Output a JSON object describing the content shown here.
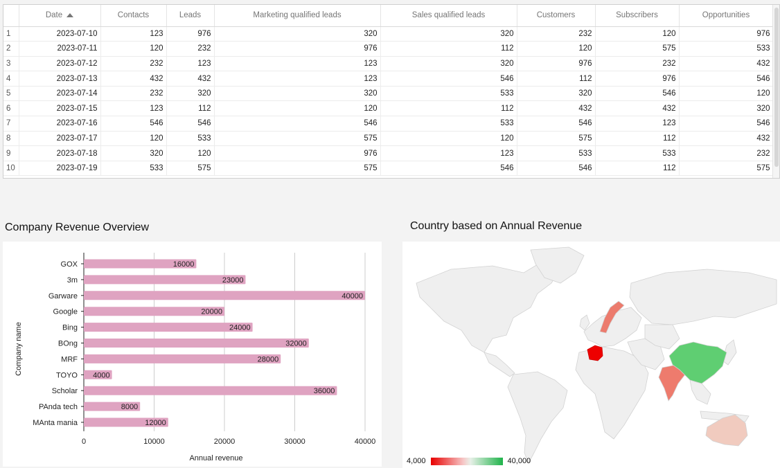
{
  "table": {
    "columns": [
      "",
      "Date",
      "Contacts",
      "Leads",
      "Marketing qualified leads",
      "Sales qualified leads",
      "Customers",
      "Subscribers",
      "Opportunities"
    ],
    "rows": [
      [
        "1",
        "2023-07-10",
        "123",
        "976",
        "320",
        "320",
        "232",
        "120",
        "976"
      ],
      [
        "2",
        "2023-07-11",
        "120",
        "232",
        "976",
        "112",
        "120",
        "575",
        "533"
      ],
      [
        "3",
        "2023-07-12",
        "232",
        "123",
        "123",
        "320",
        "976",
        "232",
        "432"
      ],
      [
        "4",
        "2023-07-13",
        "432",
        "432",
        "123",
        "546",
        "112",
        "976",
        "546"
      ],
      [
        "5",
        "2023-07-14",
        "232",
        "320",
        "320",
        "533",
        "320",
        "546",
        "120"
      ],
      [
        "6",
        "2023-07-15",
        "123",
        "112",
        "120",
        "112",
        "432",
        "432",
        "320"
      ],
      [
        "7",
        "2023-07-16",
        "546",
        "546",
        "546",
        "533",
        "546",
        "123",
        "546"
      ],
      [
        "8",
        "2023-07-17",
        "120",
        "533",
        "575",
        "120",
        "575",
        "112",
        "432"
      ],
      [
        "9",
        "2023-07-18",
        "320",
        "120",
        "976",
        "123",
        "533",
        "533",
        "232"
      ],
      [
        "10",
        "2023-07-19",
        "533",
        "575",
        "575",
        "546",
        "546",
        "112",
        "575"
      ]
    ],
    "sort": {
      "column": "Date",
      "direction": "ascending"
    }
  },
  "bar_section": {
    "title": "Company Revenue Overview"
  },
  "map_section": {
    "title": "Country based on Annual Revenue"
  },
  "chart_data": [
    {
      "type": "bar",
      "orientation": "horizontal",
      "title": "",
      "xlabel": "Annual revenue",
      "ylabel": "Company name",
      "categories": [
        "GOX",
        "3m",
        "Garware",
        "Google",
        "Bing",
        "BOng",
        "MRF",
        "TOYO",
        "Scholar",
        "PAnda tech",
        "MAnta mania"
      ],
      "values": [
        16000,
        23000,
        40000,
        20000,
        24000,
        32000,
        28000,
        4000,
        36000,
        8000,
        12000
      ],
      "xlim": [
        0,
        40000
      ],
      "xticks": [
        0,
        10000,
        20000,
        30000,
        40000
      ],
      "bar_color": "#dfa3c1",
      "grid": true,
      "data_labels": true
    }
  ],
  "map_legend": {
    "min": "4,000",
    "max": "40,000",
    "min_color": "#e80000",
    "max_color": "#1fb34a"
  }
}
